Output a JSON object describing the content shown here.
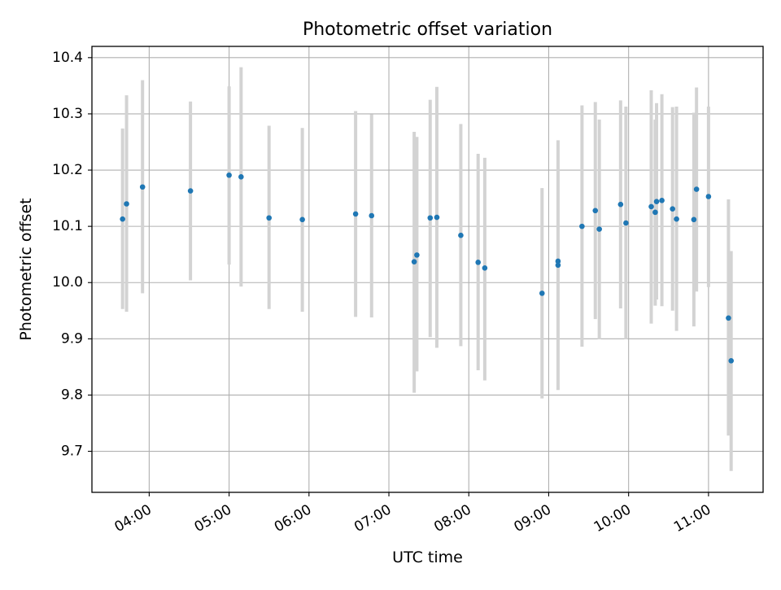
{
  "chart_data": {
    "type": "scatter",
    "title": "Photometric offset variation",
    "xlabel": "UTC time",
    "ylabel": "Photometric offset",
    "x_unit": "UTC time (HH:MM)",
    "xlim": [
      "03:17",
      "11:41"
    ],
    "ylim": [
      9.627,
      10.42
    ],
    "grid": true,
    "x_ticks": [
      "04:00",
      "05:00",
      "06:00",
      "07:00",
      "08:00",
      "09:00",
      "10:00",
      "11:00"
    ],
    "y_ticks": [
      "9.7",
      "9.8",
      "9.9",
      "10.0",
      "10.1",
      "10.2",
      "10.3",
      "10.4"
    ],
    "points": [
      {
        "x": "03:40",
        "y": 10.113,
        "ylo": 9.953,
        "yhi": 10.274
      },
      {
        "x": "03:43",
        "y": 10.14,
        "ylo": 9.948,
        "yhi": 10.333
      },
      {
        "x": "03:55",
        "y": 10.17,
        "ylo": 9.981,
        "yhi": 10.36
      },
      {
        "x": "04:31",
        "y": 10.163,
        "ylo": 10.004,
        "yhi": 10.322
      },
      {
        "x": "05:00",
        "y": 10.191,
        "ylo": 10.032,
        "yhi": 10.349
      },
      {
        "x": "05:09",
        "y": 10.188,
        "ylo": 9.993,
        "yhi": 10.383
      },
      {
        "x": "05:30",
        "y": 10.115,
        "ylo": 9.953,
        "yhi": 10.279
      },
      {
        "x": "05:55",
        "y": 10.112,
        "ylo": 9.948,
        "yhi": 10.275
      },
      {
        "x": "06:35",
        "y": 10.122,
        "ylo": 9.939,
        "yhi": 10.305
      },
      {
        "x": "06:47",
        "y": 10.119,
        "ylo": 9.938,
        "yhi": 10.299
      },
      {
        "x": "07:19",
        "y": 10.037,
        "ylo": 9.804,
        "yhi": 10.268
      },
      {
        "x": "07:21",
        "y": 10.049,
        "ylo": 9.842,
        "yhi": 10.259
      },
      {
        "x": "07:31",
        "y": 10.115,
        "ylo": 9.903,
        "yhi": 10.325
      },
      {
        "x": "07:36",
        "y": 10.116,
        "ylo": 9.884,
        "yhi": 10.348
      },
      {
        "x": "07:54",
        "y": 10.084,
        "ylo": 9.887,
        "yhi": 10.282
      },
      {
        "x": "08:07",
        "y": 10.036,
        "ylo": 9.844,
        "yhi": 10.229
      },
      {
        "x": "08:12",
        "y": 10.026,
        "ylo": 9.826,
        "yhi": 10.222
      },
      {
        "x": "08:55",
        "y": 9.981,
        "ylo": 9.794,
        "yhi": 10.168
      },
      {
        "x": "09:07",
        "y": 10.031,
        "ylo": 9.809,
        "yhi": 10.253
      },
      {
        "x": "09:07",
        "y": 10.038
      },
      {
        "x": "09:25",
        "y": 10.1,
        "ylo": 9.886,
        "yhi": 10.315
      },
      {
        "x": "09:35",
        "y": 10.128,
        "ylo": 9.935,
        "yhi": 10.321
      },
      {
        "x": "09:38",
        "y": 10.095,
        "ylo": 9.899,
        "yhi": 10.29
      },
      {
        "x": "09:54",
        "y": 10.139,
        "ylo": 9.954,
        "yhi": 10.324
      },
      {
        "x": "09:58",
        "y": 10.106,
        "ylo": 9.899,
        "yhi": 10.313
      },
      {
        "x": "10:17",
        "y": 10.135,
        "ylo": 9.927,
        "yhi": 10.342
      },
      {
        "x": "10:20",
        "y": 10.125,
        "ylo": 9.959,
        "yhi": 10.29
      },
      {
        "x": "10:21",
        "y": 10.144,
        "ylo": 9.97,
        "yhi": 10.319
      },
      {
        "x": "10:25",
        "y": 10.146,
        "ylo": 9.958,
        "yhi": 10.335
      },
      {
        "x": "10:33",
        "y": 10.131,
        "ylo": 9.95,
        "yhi": 10.312
      },
      {
        "x": "10:36",
        "y": 10.113,
        "ylo": 9.914,
        "yhi": 10.313
      },
      {
        "x": "10:49",
        "y": 10.112,
        "ylo": 9.922,
        "yhi": 10.302
      },
      {
        "x": "10:51",
        "y": 10.166,
        "ylo": 9.984,
        "yhi": 10.347
      },
      {
        "x": "11:00",
        "y": 10.153,
        "ylo": 9.992,
        "yhi": 10.313
      },
      {
        "x": "11:15",
        "y": 9.937,
        "ylo": 9.728,
        "yhi": 10.148
      },
      {
        "x": "11:17",
        "y": 9.861,
        "ylo": 9.665,
        "yhi": 10.056
      }
    ],
    "colors": {
      "marker": "#1f77b4",
      "errorbar": "#d3d3d3",
      "grid": "#b0b0b0",
      "axes": "#000000",
      "background": "#ffffff"
    }
  }
}
